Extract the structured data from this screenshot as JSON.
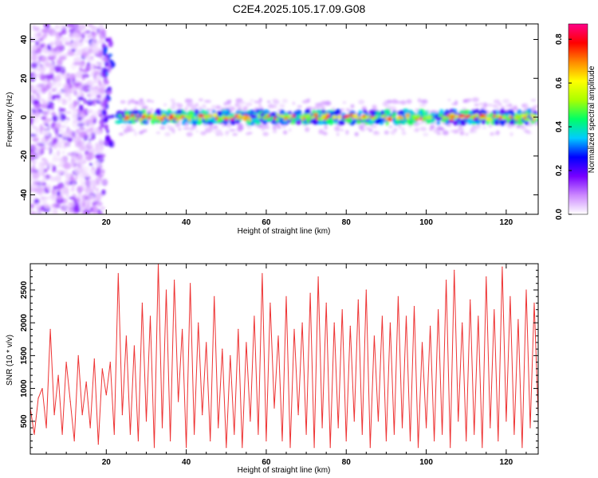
{
  "title": "C2E4.2025.105.17.09.G08",
  "chart_data": [
    {
      "type": "heatmap",
      "xlabel": "Height of straight line (km)",
      "ylabel": "Frequency (Hz)",
      "xlim": [
        1,
        128
      ],
      "ylim": [
        -50,
        48
      ],
      "xticks": [
        20,
        40,
        60,
        80,
        100,
        120
      ],
      "yticks": [
        -40,
        -20,
        0,
        20,
        40
      ],
      "colorbar": {
        "label": "Normalized spectral amplitude",
        "range": [
          0,
          0.87
        ],
        "ticks": [
          "0.0",
          "0.2",
          "0.4",
          "0.6",
          "0.8"
        ],
        "colormap": [
          "#ffffff",
          "#cc88ff",
          "#7700ff",
          "#0000ff",
          "#00ccff",
          "#00ff66",
          "#aaff00",
          "#ffff00",
          "#ff8800",
          "#ff0000",
          "#ff0088"
        ]
      },
      "features": {
        "noise_region_km": [
          1,
          19
        ],
        "transition_km": [
          19,
          23
        ],
        "signal_band_km": [
          23,
          128
        ],
        "signal_center_hz": 0
      }
    },
    {
      "type": "line",
      "xlabel": "Height of straight line (km)",
      "ylabel": "SNR (10 * v/v)",
      "xlim": [
        1,
        128
      ],
      "ylim": [
        0,
        2900
      ],
      "xticks": [
        20,
        40,
        60,
        80,
        100,
        120
      ],
      "yticks": [
        500,
        1000,
        1500,
        2000,
        2500
      ],
      "series": [
        {
          "color": "#ee3333",
          "x": [
            1,
            2,
            3,
            4,
            5,
            6,
            7,
            8,
            9,
            10,
            11,
            12,
            13,
            14,
            15,
            16,
            17,
            18,
            19,
            20,
            21,
            22,
            23,
            24,
            25,
            26,
            27,
            28,
            29,
            30,
            31,
            32,
            33,
            34,
            35,
            36,
            37,
            38,
            39,
            40,
            41,
            42,
            43,
            44,
            45,
            46,
            47,
            48,
            49,
            50,
            51,
            52,
            53,
            54,
            55,
            56,
            57,
            58,
            59,
            60,
            61,
            62,
            63,
            64,
            65,
            66,
            67,
            68,
            69,
            70,
            71,
            72,
            73,
            74,
            75,
            76,
            77,
            78,
            79,
            80,
            81,
            82,
            83,
            84,
            85,
            86,
            87,
            88,
            89,
            90,
            91,
            92,
            93,
            94,
            95,
            96,
            97,
            98,
            99,
            100,
            101,
            102,
            103,
            104,
            105,
            106,
            107,
            108,
            109,
            110,
            111,
            112,
            113,
            114,
            115,
            116,
            117,
            118,
            119,
            120,
            121,
            122,
            123,
            124,
            125,
            126,
            127,
            128
          ],
          "values": [
            700,
            300,
            850,
            1000,
            400,
            1900,
            600,
            1200,
            300,
            1400,
            800,
            200,
            1500,
            600,
            1100,
            400,
            1450,
            150,
            1300,
            900,
            1400,
            300,
            2750,
            600,
            1800,
            300,
            1650,
            200,
            2300,
            500,
            2100,
            100,
            2900,
            400,
            2500,
            200,
            2650,
            800,
            1900,
            100,
            2600,
            300,
            2000,
            600,
            1700,
            200,
            2400,
            400,
            1600,
            100,
            1500,
            300,
            1900,
            100,
            1700,
            500,
            2100,
            300,
            2750,
            200,
            2300,
            700,
            1800,
            200,
            2400,
            100,
            1900,
            600,
            2000,
            300,
            2450,
            100,
            2700,
            400,
            2300,
            100,
            2000,
            400,
            2200,
            200,
            1950,
            500,
            2350,
            300,
            2500,
            100,
            1800,
            500,
            2100,
            200,
            2000,
            300,
            2400,
            400,
            2100,
            200,
            2250,
            100,
            1700,
            400,
            1950,
            200,
            2200,
            300,
            2650,
            100,
            2800,
            500,
            2000,
            200,
            2350,
            300,
            2100,
            100,
            2700,
            400,
            2200,
            200,
            2850,
            500,
            2400,
            300,
            2050,
            100,
            2500,
            400,
            2300,
            600
          ]
        }
      ]
    }
  ]
}
